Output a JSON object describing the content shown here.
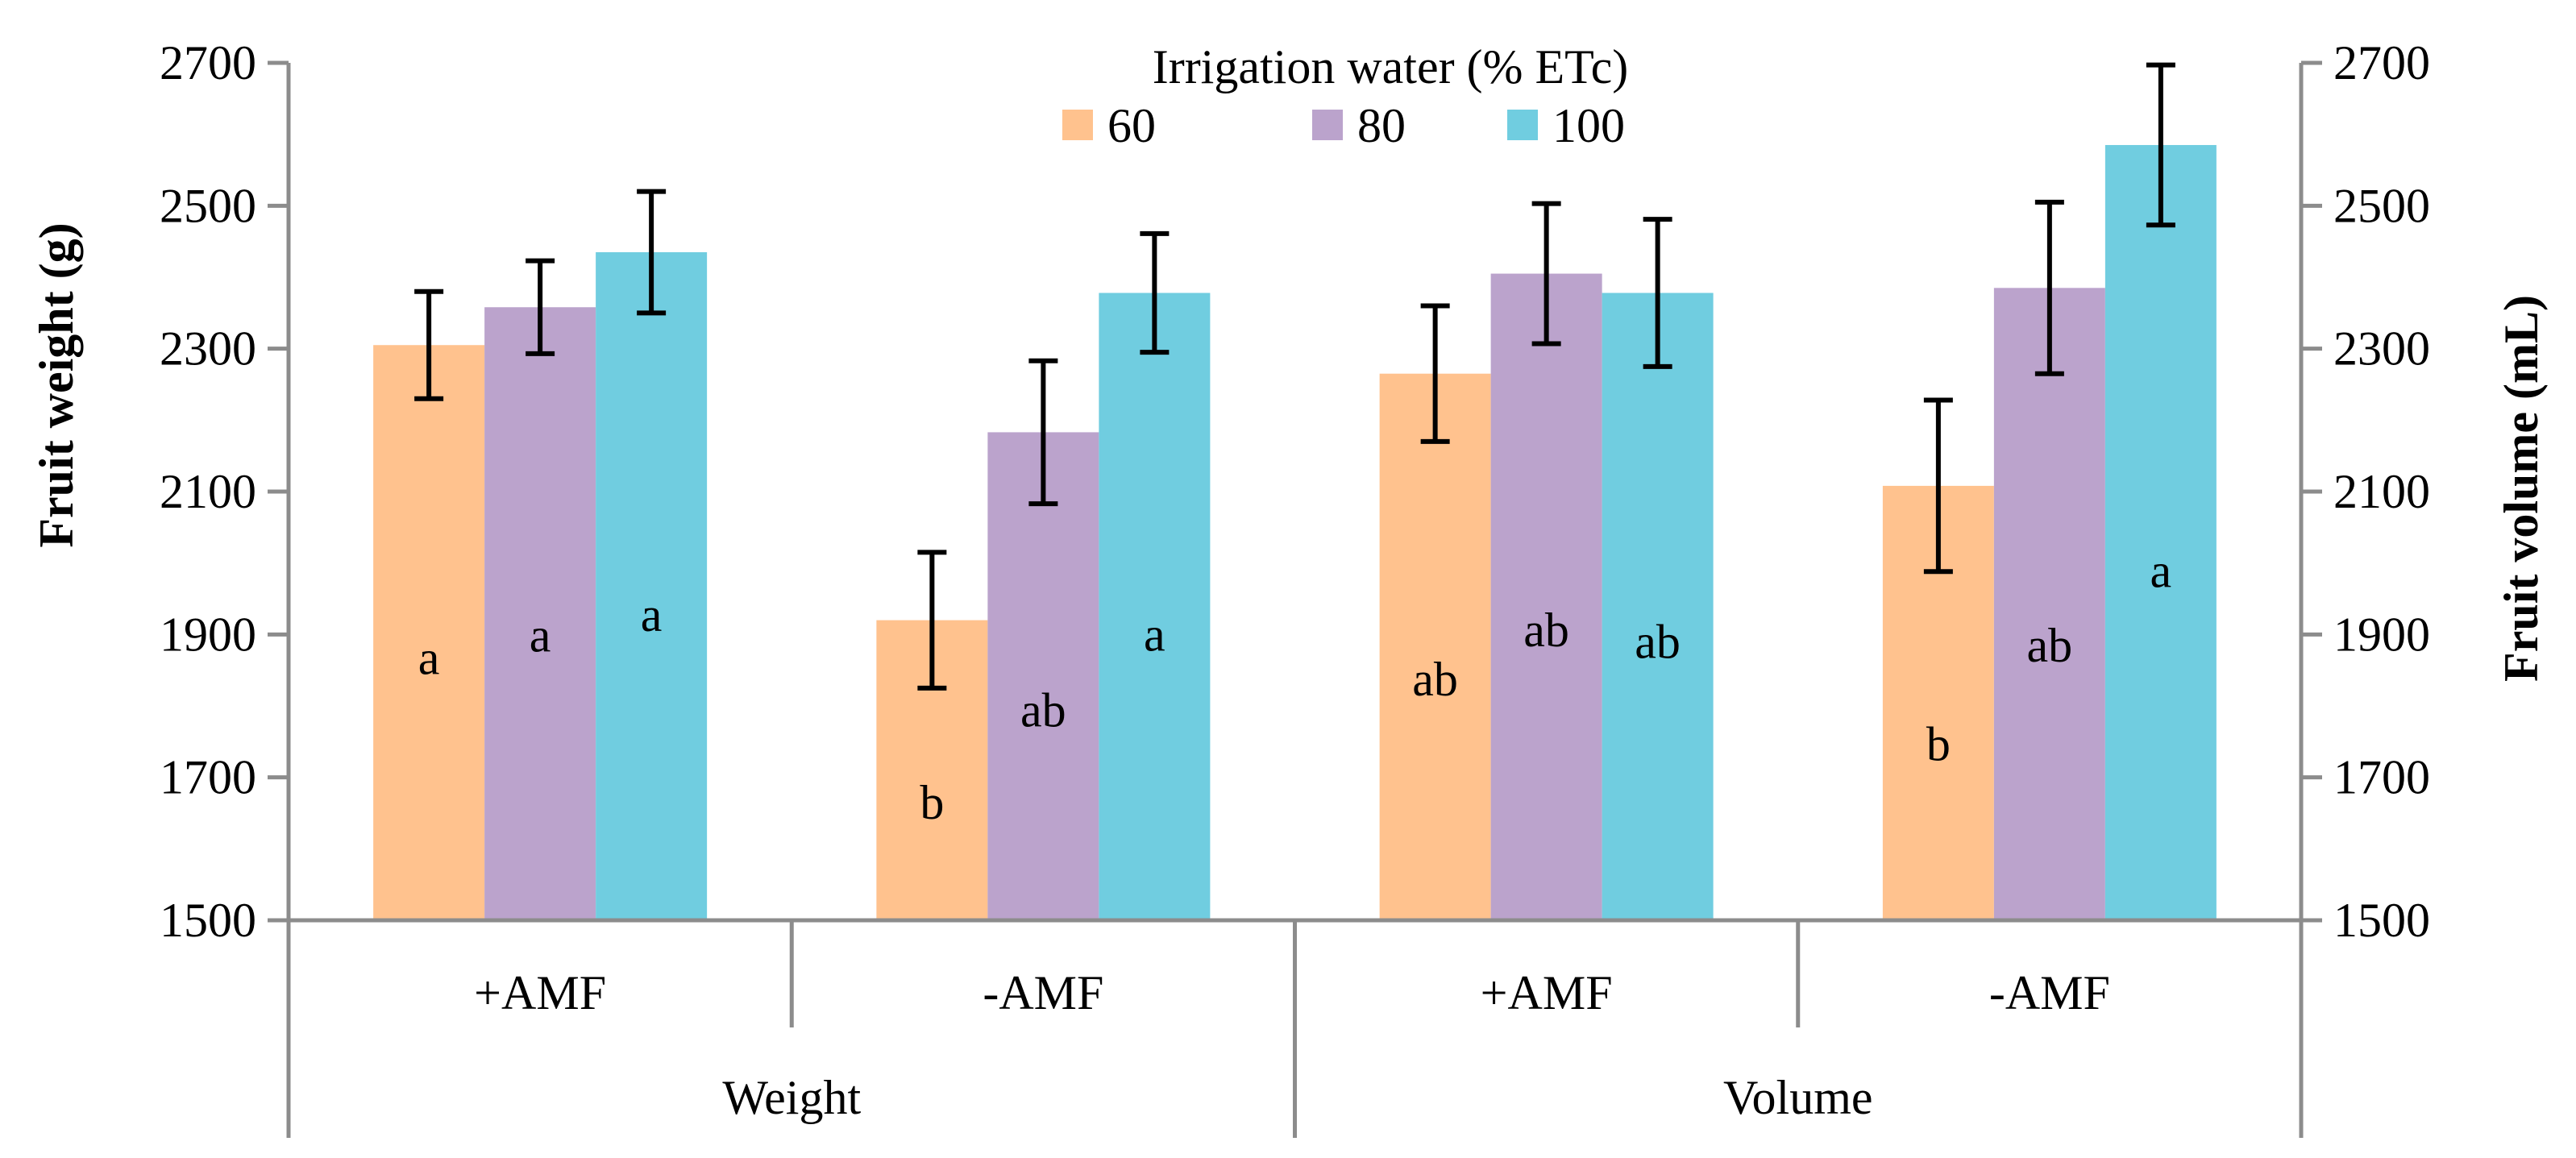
{
  "chart_data": {
    "type": "bar",
    "legend_title": "Irrigation water (% ETc)",
    "legend_placement": "top-center",
    "y_left_label": "Fruit weight (g)",
    "y_right_label": "Fruit volume (mL)",
    "ylim": [
      1500,
      2700
    ],
    "yticks": [
      "1500",
      "1700",
      "1900",
      "2100",
      "2300",
      "2500",
      "2700"
    ],
    "y_right_ticks": [
      "1500",
      "1700",
      "1900",
      "2100",
      "2300",
      "2500",
      "2700"
    ],
    "groups": [
      "Weight",
      "Volume"
    ],
    "categories": [
      "+AMF",
      "-AMF",
      "+AMF",
      "-AMF"
    ],
    "series": [
      {
        "name": "60",
        "color": "#FFC28E",
        "values": [
          2305,
          1920,
          2265,
          2108
        ],
        "errors": [
          75,
          95,
          95,
          120
        ],
        "letters": [
          "a",
          "b",
          "ab",
          "b"
        ]
      },
      {
        "name": "80",
        "color": "#BBA3CC",
        "values": [
          2358,
          2183,
          2405,
          2385
        ],
        "errors": [
          65,
          100,
          98,
          120
        ],
        "letters": [
          "a",
          "ab",
          "ab",
          "ab"
        ]
      },
      {
        "name": "100",
        "color": "#70CDE0",
        "values": [
          2435,
          2378,
          2378,
          2585
        ],
        "errors": [
          85,
          83,
          103,
          112
        ],
        "letters": [
          "a",
          "a",
          "ab",
          "a"
        ]
      }
    ]
  }
}
